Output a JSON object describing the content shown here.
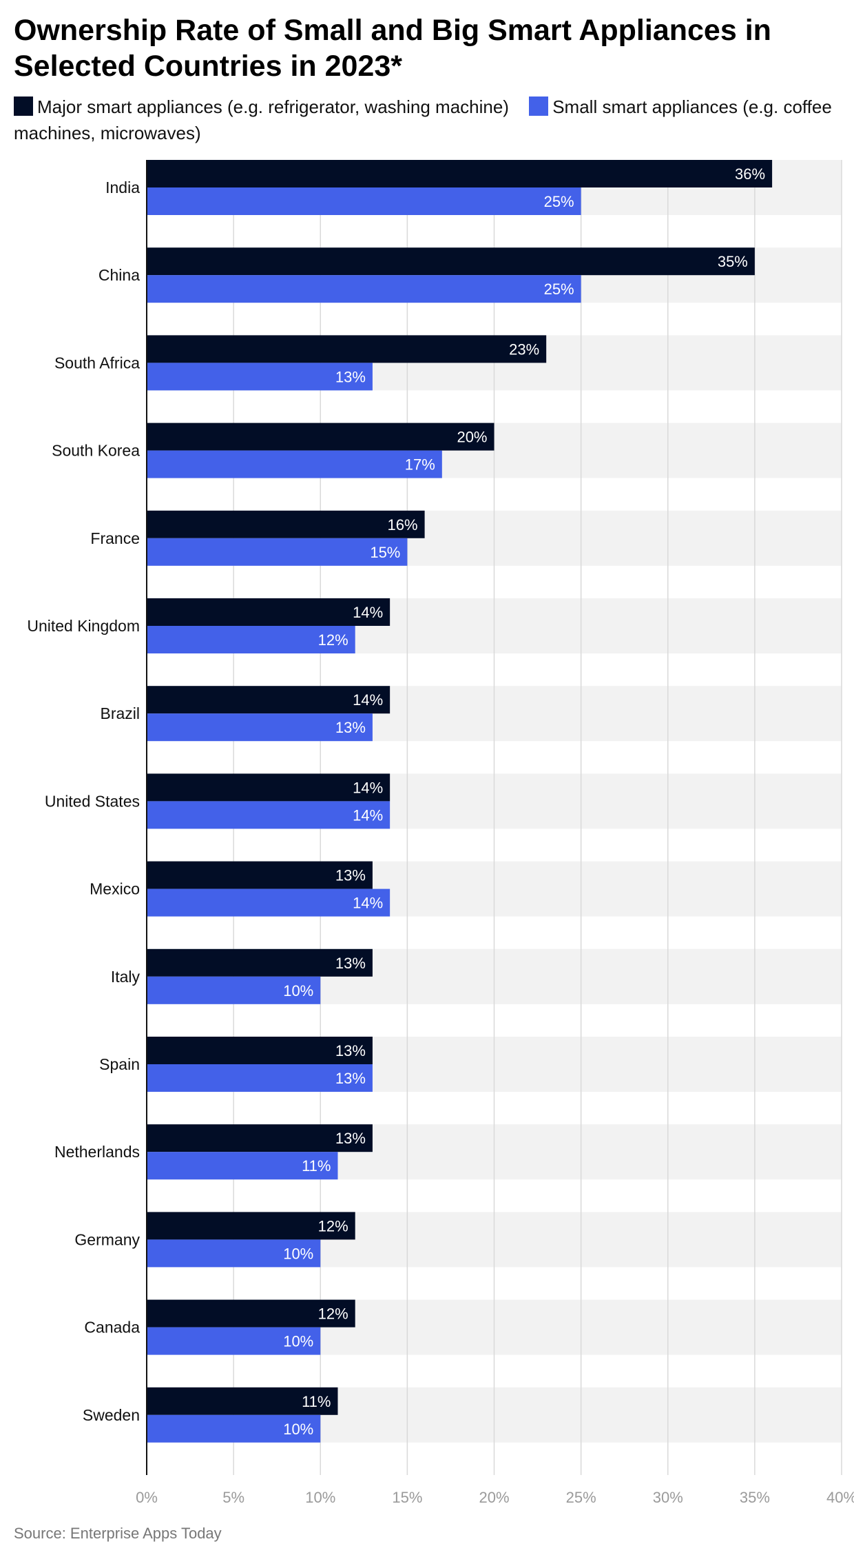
{
  "chart_data": {
    "type": "bar",
    "orientation": "horizontal",
    "title": "Ownership Rate of Small and Big Smart Appliances in Selected Countries in 2023*",
    "categories": [
      "India",
      "China",
      "South Africa",
      "South Korea",
      "France",
      "United Kingdom",
      "Brazil",
      "United States",
      "Mexico",
      "Italy",
      "Spain",
      "Netherlands",
      "Germany",
      "Canada",
      "Sweden"
    ],
    "series": [
      {
        "name": "Major smart appliances (e.g. refrigerator, washing machine)",
        "color": "#020d26",
        "values": [
          36,
          35,
          23,
          20,
          16,
          14,
          14,
          14,
          13,
          13,
          13,
          13,
          12,
          12,
          11
        ]
      },
      {
        "name": "Small smart appliances (e.g. coffee machines, microwaves)",
        "color": "#4361e9",
        "values": [
          25,
          25,
          13,
          17,
          15,
          12,
          13,
          14,
          14,
          10,
          13,
          11,
          10,
          10,
          10
        ]
      }
    ],
    "xlim": [
      0,
      40
    ],
    "xticks": [
      0,
      5,
      10,
      15,
      20,
      25,
      30,
      35,
      40
    ],
    "value_suffix": "%",
    "xlabel": "",
    "ylabel": "",
    "grid": true,
    "legend_position": "top-left"
  },
  "source": "Source: Enterprise Apps Today"
}
